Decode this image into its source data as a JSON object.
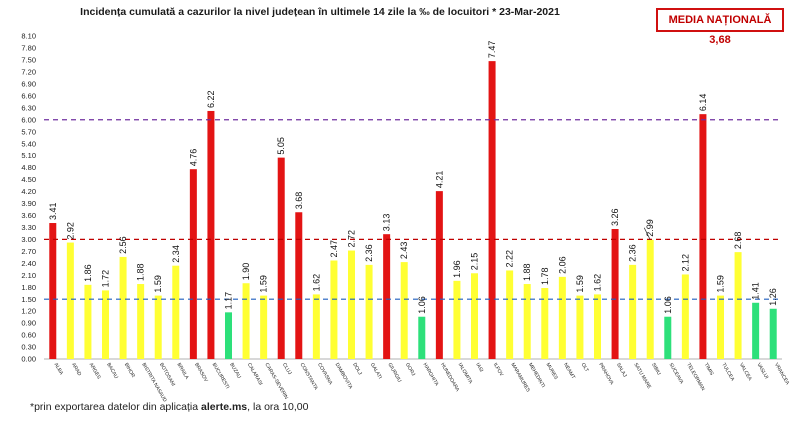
{
  "header": {
    "title": "Incidența cumulată a cazurilor la nivel județean în ultimele 14 zile la ‰ de locuitori * 23-Mar-2021",
    "badge": "MEDIA NAȚIONALĂ 3,68"
  },
  "footnote": {
    "prefix": "*prin exportarea datelor din aplicația ",
    "app": "alerte.ms",
    "suffix": ", la ora 10,00"
  },
  "colors": {
    "red": "#e31414",
    "yellow": "#ffff33",
    "green": "#2de07a",
    "purple_line": "#7030a0",
    "red_line": "#c00000",
    "blue_line": "#1f5fbf"
  },
  "chart_data": {
    "type": "bar",
    "ylim": [
      0,
      8.1
    ],
    "yticks": [
      "0.00",
      "0.30",
      "0.60",
      "0.90",
      "1.20",
      "1.50",
      "1.80",
      "2.10",
      "2.40",
      "2.70",
      "3.00",
      "3.30",
      "3.60",
      "3.90",
      "4.20",
      "4.50",
      "4.80",
      "5.10",
      "5.40",
      "5.70",
      "6.00",
      "6.30",
      "6.60",
      "6.90",
      "7.20",
      "7.50",
      "7.80",
      "8.10"
    ],
    "categories": [
      "ALBA",
      "ARAD",
      "ARGES",
      "BACAU",
      "BIHOR",
      "BISTRITA NASAUD",
      "BOTOSANI",
      "BRAILA",
      "BRASOV",
      "BUCURESTI",
      "BUZAU",
      "CALARASI",
      "CARAS-SEVERIN",
      "CLUJ",
      "CONSTANTA",
      "COVASNA",
      "DAMBOVITA",
      "DOLJ",
      "GALATI",
      "GIURGIU",
      "GORJ",
      "HARGHITA",
      "HUNEDOARA",
      "IALOMITA",
      "IASI",
      "ILFOV",
      "MARAMURES",
      "MEHEDINTI",
      "MURES",
      "NEAMT",
      "OLT",
      "PRAHOVA",
      "SALAJ",
      "SATU MARE",
      "SIBIU",
      "SUCEAVA",
      "TELEORMAN",
      "TIMIS",
      "TULCEA",
      "VALCEA",
      "VASLUI",
      "VRANCEA"
    ],
    "values": [
      3.41,
      2.92,
      1.86,
      1.72,
      2.56,
      1.88,
      1.59,
      2.34,
      4.76,
      6.22,
      1.17,
      1.9,
      1.59,
      5.05,
      3.68,
      1.62,
      2.47,
      2.72,
      2.36,
      3.13,
      2.43,
      1.06,
      4.21,
      1.96,
      2.15,
      7.47,
      2.22,
      1.88,
      1.78,
      2.06,
      1.59,
      1.62,
      3.26,
      2.36,
      2.99,
      1.06,
      2.12,
      6.14,
      1.59,
      2.68,
      1.41,
      1.26
    ],
    "labels": [
      "3.41",
      "2.92",
      "1.86",
      "1.72",
      "2.56",
      "1.88",
      "1.59",
      "2.34",
      "4.76",
      "6.22",
      "1.17",
      "1.90",
      "1.59",
      "5.05",
      "3.68",
      "1.62",
      "2.47",
      "2.72",
      "2.36",
      "3.13",
      "2.43",
      "1.06",
      "4.21",
      "1.96",
      "2.15",
      "7.47",
      "2.22",
      "1.88",
      "1.78",
      "2.06",
      "1.59",
      "1.62",
      "3.26",
      "2.36",
      "2.99",
      "1.06",
      "2.12",
      "6.14",
      "1.59",
      "2.68",
      "1.41",
      "1.26"
    ],
    "thresholds": [
      {
        "value": 6.0,
        "color": "#7030a0"
      },
      {
        "value": 3.0,
        "color": "#c00000"
      },
      {
        "value": 1.5,
        "color": "#1f5fbf"
      }
    ]
  }
}
